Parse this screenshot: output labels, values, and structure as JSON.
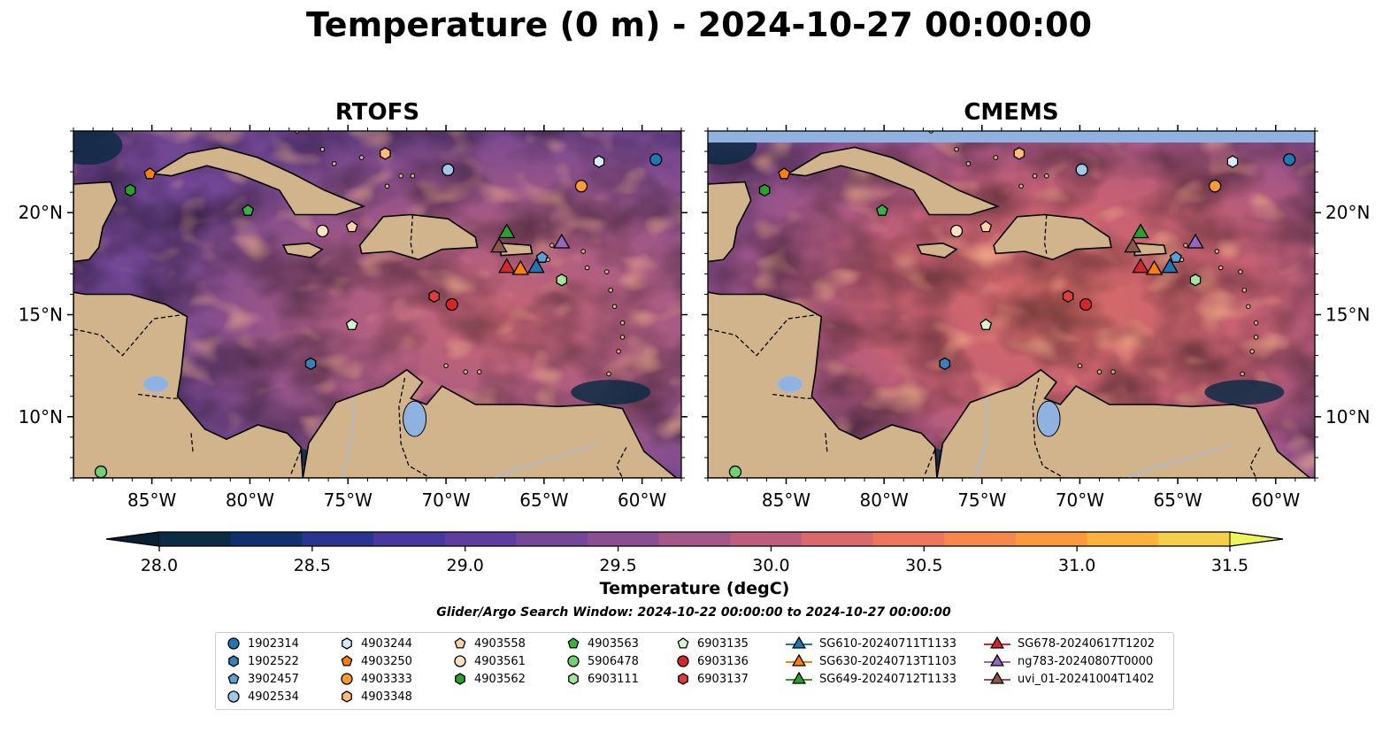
{
  "title": "Temperature (0 m) - 2024-10-27 00:00:00",
  "panels": [
    {
      "title": "RTOFS"
    },
    {
      "title": "CMEMS"
    }
  ],
  "map_extent": {
    "lon": [
      -89,
      -58
    ],
    "lat": [
      7,
      24
    ]
  },
  "lon_ticks": [
    {
      "value": -85,
      "label": "85°W"
    },
    {
      "value": -80,
      "label": "80°W"
    },
    {
      "value": -75,
      "label": "75°W"
    },
    {
      "value": -70,
      "label": "70°W"
    },
    {
      "value": -65,
      "label": "65°W"
    },
    {
      "value": -60,
      "label": "60°W"
    }
  ],
  "lat_ticks": [
    {
      "value": 20,
      "label": "20°N"
    },
    {
      "value": 15,
      "label": "15°N"
    },
    {
      "value": 10,
      "label": "10°N"
    }
  ],
  "colorbar": {
    "label": "Temperature (degC)",
    "min": 28.0,
    "max": 31.5,
    "ticks": [
      "28.0",
      "28.5",
      "29.0",
      "29.5",
      "30.0",
      "30.5",
      "31.0",
      "31.5"
    ],
    "colors": [
      "#0d2b45",
      "#13306e",
      "#2b3490",
      "#47399e",
      "#5d3e9e",
      "#744799",
      "#8a4f91",
      "#a35888",
      "#bd5f7c",
      "#d86a6c",
      "#ec775c",
      "#f6884c",
      "#fb9a3c",
      "#fbb33e",
      "#f6cf4a"
    ],
    "under_color": "#082032",
    "over_color": "#eef55a"
  },
  "search_window": "Glider/Argo Search Window: 2024-10-22 00:00:00 to 2024-10-27 00:00:00",
  "colors": {
    "land": "#d2b48c",
    "ocean_bg": "#7b4a93",
    "lake": "#8fb2e0",
    "river": "#a7bbd6"
  },
  "legend": [
    {
      "label": "1902314",
      "marker": "circle",
      "color": "#1f77b4"
    },
    {
      "label": "1902522",
      "marker": "hexagon",
      "color": "#3a7fb8"
    },
    {
      "label": "3902457",
      "marker": "pentagon",
      "color": "#5a9fd8"
    },
    {
      "label": "4902534",
      "marker": "circle",
      "color": "#9ecae8"
    },
    {
      "label": "4903244",
      "marker": "hexagon",
      "color": "#dbeafa"
    },
    {
      "label": "4903250",
      "marker": "pentagon",
      "color": "#ff7f0e"
    },
    {
      "label": "4903333",
      "marker": "circle",
      "color": "#ff9933"
    },
    {
      "label": "4903348",
      "marker": "hexagon",
      "color": "#ffbb78"
    },
    {
      "label": "4903558",
      "marker": "pentagon",
      "color": "#ffd1a8"
    },
    {
      "label": "4903561",
      "marker": "circle",
      "color": "#ffe2c4"
    },
    {
      "label": "4903562",
      "marker": "hexagon",
      "color": "#2ca02c"
    },
    {
      "label": "4903563",
      "marker": "pentagon",
      "color": "#3cb043"
    },
    {
      "label": "5906478",
      "marker": "circle",
      "color": "#72d072"
    },
    {
      "label": "6903111",
      "marker": "hexagon",
      "color": "#a6e3a1"
    },
    {
      "label": "6903135",
      "marker": "pentagon",
      "color": "#d4f5cf"
    },
    {
      "label": "6903136",
      "marker": "circle",
      "color": "#d62728"
    },
    {
      "label": "6903137",
      "marker": "hexagon",
      "color": "#e03c3c"
    },
    {
      "label": "SG610-20240711T1133",
      "marker": "triangle",
      "color": "#1f77b4"
    },
    {
      "label": "SG630-20240713T1103",
      "marker": "triangle",
      "color": "#ff7f0e"
    },
    {
      "label": "SG649-20240712T1133",
      "marker": "triangle",
      "color": "#2ca02c"
    },
    {
      "label": "SG678-20240617T1202",
      "marker": "triangle",
      "color": "#d62728"
    },
    {
      "label": "ng783-20240807T0000",
      "marker": "triangle",
      "color": "#9467bd"
    },
    {
      "label": "uvi_01-20241004T1402",
      "marker": "triangle",
      "color": "#8c564b"
    }
  ],
  "observations": [
    {
      "id": "1902314",
      "lon": -59.3,
      "lat": 22.6
    },
    {
      "id": "1902522",
      "lon": -76.9,
      "lat": 12.6
    },
    {
      "id": "3902457",
      "lon": -65.1,
      "lat": 17.8
    },
    {
      "id": "4902534",
      "lon": -69.9,
      "lat": 22.1
    },
    {
      "id": "4903244",
      "lon": -62.2,
      "lat": 22.5
    },
    {
      "id": "4903250",
      "lon": -85.1,
      "lat": 21.9
    },
    {
      "id": "4903333",
      "lon": -63.1,
      "lat": 21.3
    },
    {
      "id": "4903348",
      "lon": -73.1,
      "lat": 22.9
    },
    {
      "id": "4903558",
      "lon": -74.8,
      "lat": 19.3
    },
    {
      "id": "4903561",
      "lon": -76.3,
      "lat": 19.1
    },
    {
      "id": "4903562",
      "lon": -86.1,
      "lat": 21.1
    },
    {
      "id": "4903563",
      "lon": -80.1,
      "lat": 20.1
    },
    {
      "id": "5906478",
      "lon": -87.6,
      "lat": 7.3
    },
    {
      "id": "6903111",
      "lon": -64.1,
      "lat": 16.7
    },
    {
      "id": "6903135",
      "lon": -74.8,
      "lat": 14.5
    },
    {
      "id": "6903136",
      "lon": -69.7,
      "lat": 15.5
    },
    {
      "id": "6903137",
      "lon": -70.6,
      "lat": 15.9
    },
    {
      "id": "SG610-20240711T1133",
      "lon": -65.4,
      "lat": 17.4
    },
    {
      "id": "SG630-20240713T1103",
      "lon": -66.2,
      "lat": 17.3
    },
    {
      "id": "SG649-20240712T1133",
      "lon": -66.9,
      "lat": 19.1
    },
    {
      "id": "SG678-20240617T1202",
      "lon": -66.9,
      "lat": 17.4
    },
    {
      "id": "ng783-20240807T0000",
      "lon": -64.1,
      "lat": 18.6
    },
    {
      "id": "uvi_01-20241004T1402",
      "lon": -67.3,
      "lat": 18.4
    }
  ]
}
